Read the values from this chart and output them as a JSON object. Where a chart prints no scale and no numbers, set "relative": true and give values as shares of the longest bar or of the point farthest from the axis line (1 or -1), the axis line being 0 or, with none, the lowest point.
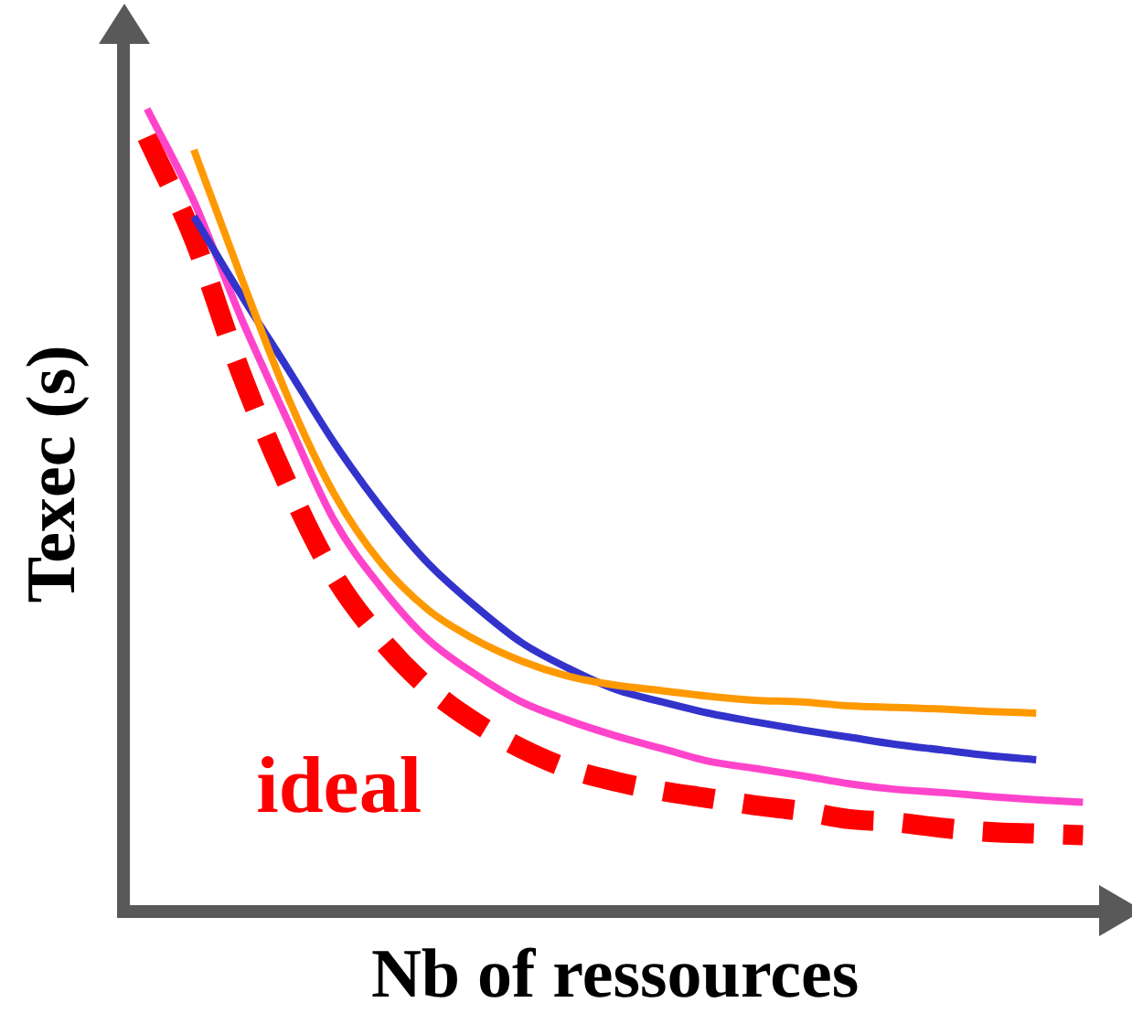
{
  "chart_data": {
    "type": "line",
    "relative": true,
    "xlabel": "Nb of ressources",
    "ylabel": "Texec (s)",
    "legend": false,
    "grid": false,
    "marker": "none",
    "categories": [
      null,
      null,
      null,
      null,
      null,
      null,
      null,
      null,
      null,
      null,
      null,
      null,
      null,
      null,
      null,
      null,
      null,
      null,
      null,
      null,
      null
    ],
    "series": [
      {
        "color": "#ff9900",
        "values": [
          null,
          0.949,
          0.792,
          0.642,
          0.52,
          0.434,
          0.376,
          0.339,
          0.312,
          0.293,
          0.282,
          0.275,
          0.268,
          0.263,
          0.261,
          0.256,
          0.254,
          0.252,
          0.249,
          0.247,
          null
        ]
      },
      {
        "color": "#3333cc",
        "values": [
          null,
          0.866,
          0.769,
          0.677,
          0.584,
          0.503,
          0.434,
          0.381,
          0.335,
          0.303,
          0.277,
          0.261,
          0.247,
          0.236,
          0.226,
          0.217,
          0.208,
          0.201,
          0.194,
          0.189,
          null
        ]
      },
      {
        "color": "#ff44cc",
        "values": [
          1.0,
          0.885,
          0.741,
          0.612,
          0.487,
          0.404,
          0.339,
          0.296,
          0.261,
          0.238,
          0.219,
          0.203,
          0.187,
          0.178,
          0.169,
          0.159,
          0.152,
          0.148,
          0.143,
          0.139,
          0.136
        ]
      },
      {
        "name": "ideal",
        "color": "#ff0000",
        "line_style": "dashed",
        "values": [
          0.965,
          0.838,
          0.672,
          0.533,
          0.418,
          0.339,
          0.279,
          0.236,
          0.203,
          0.178,
          0.162,
          0.15,
          0.141,
          0.132,
          0.125,
          0.115,
          0.111,
          0.104,
          0.099,
          0.097,
          0.095
        ]
      }
    ]
  }
}
